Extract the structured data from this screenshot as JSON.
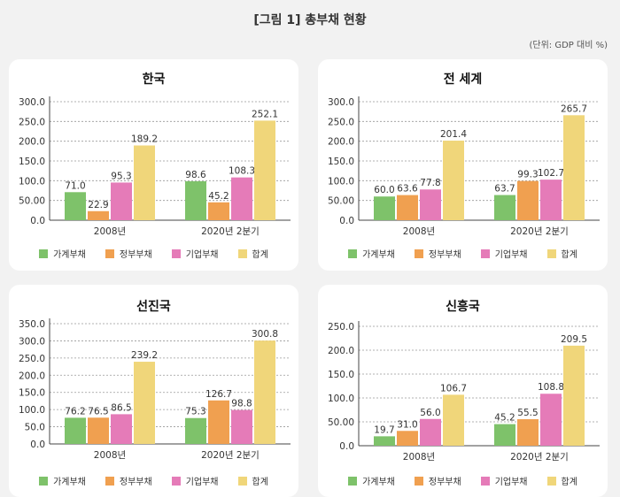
{
  "page": {
    "title": "[그림 1] 총부채 현황",
    "unit": "(단위: GDP 대비 %)"
  },
  "legend": {
    "labels": [
      "가계부채",
      "정부부채",
      "기업부채",
      "합계"
    ]
  },
  "colors": {
    "household": "#7ec26a",
    "government": "#f0a050",
    "corporate": "#e57bb8",
    "total": "#f0d67a",
    "axis": "#444444",
    "grid": "#999999"
  },
  "chart_data": [
    {
      "type": "bar",
      "title": "한국",
      "categories": [
        "2008년",
        "2020년 2분기"
      ],
      "series": [
        {
          "name": "가계부채",
          "values": [
            71.0,
            98.6
          ]
        },
        {
          "name": "정부부채",
          "values": [
            22.9,
            45.2
          ]
        },
        {
          "name": "기업부채",
          "values": [
            95.3,
            108.3
          ]
        },
        {
          "name": "합계",
          "values": [
            189.2,
            252.1
          ]
        }
      ],
      "value_labels": [
        [
          "71.0",
          "98.6"
        ],
        [
          "22.9",
          "45.2"
        ],
        [
          "95.3",
          "108.3"
        ],
        [
          "189.2",
          "252.1"
        ]
      ],
      "ylim": [
        0,
        300
      ],
      "yticks": [
        "0.0",
        "50.00",
        "100.0",
        "150.0",
        "200.0",
        "250.0",
        "300.0"
      ],
      "grid": true,
      "legend_position": "bottom"
    },
    {
      "type": "bar",
      "title": "전 세계",
      "categories": [
        "2008년",
        "2020년 2분기"
      ],
      "series": [
        {
          "name": "가계부채",
          "values": [
            60.0,
            63.7
          ]
        },
        {
          "name": "정부부채",
          "values": [
            63.6,
            99.3
          ]
        },
        {
          "name": "기업부채",
          "values": [
            77.8,
            102.7
          ]
        },
        {
          "name": "합계",
          "values": [
            201.4,
            265.7
          ]
        }
      ],
      "value_labels": [
        [
          "60.0",
          "63.7"
        ],
        [
          "63.6",
          "99.3"
        ],
        [
          "77.8",
          "102.7"
        ],
        [
          "201.4",
          "265.7"
        ]
      ],
      "ylim": [
        0,
        300
      ],
      "yticks": [
        "0.0",
        "50.00",
        "100.0",
        "150.0",
        "200.0",
        "250.0",
        "300.0"
      ],
      "grid": true,
      "legend_position": "bottom"
    },
    {
      "type": "bar",
      "title": "선진국",
      "categories": [
        "2008년",
        "2020년 2분기"
      ],
      "series": [
        {
          "name": "가계부채",
          "values": [
            76.2,
            75.3
          ]
        },
        {
          "name": "정부부채",
          "values": [
            76.5,
            126.7
          ]
        },
        {
          "name": "기업부채",
          "values": [
            86.5,
            98.8
          ]
        },
        {
          "name": "합계",
          "values": [
            239.2,
            300.8
          ]
        }
      ],
      "value_labels": [
        [
          "76.2",
          "75.3"
        ],
        [
          "76.5",
          "126.7"
        ],
        [
          "86.5",
          "98.8"
        ],
        [
          "239.2",
          "300.8"
        ]
      ],
      "ylim": [
        0,
        350
      ],
      "yticks": [
        "0.0",
        "50.0",
        "100.0",
        "150.0",
        "200.0",
        "250.0",
        "300.0",
        "350.0"
      ],
      "grid": true,
      "legend_position": "bottom"
    },
    {
      "type": "bar",
      "title": "신흥국",
      "categories": [
        "2008년",
        "2020년 2분기"
      ],
      "series": [
        {
          "name": "가계부채",
          "values": [
            19.7,
            45.2
          ]
        },
        {
          "name": "정부부채",
          "values": [
            31.0,
            55.5
          ]
        },
        {
          "name": "기업부채",
          "values": [
            56.0,
            108.8
          ]
        },
        {
          "name": "합계",
          "values": [
            106.7,
            209.5
          ]
        }
      ],
      "value_labels": [
        [
          "19.7",
          "45.2"
        ],
        [
          "31.0",
          "55.5"
        ],
        [
          "56.0",
          "108.8"
        ],
        [
          "106.7",
          "209.5"
        ]
      ],
      "ylim": [
        0,
        250
      ],
      "yticks": [
        "0.0",
        "50.00",
        "100.0",
        "150.0",
        "200.0",
        "250.0"
      ],
      "grid": true,
      "legend_position": "bottom"
    }
  ]
}
